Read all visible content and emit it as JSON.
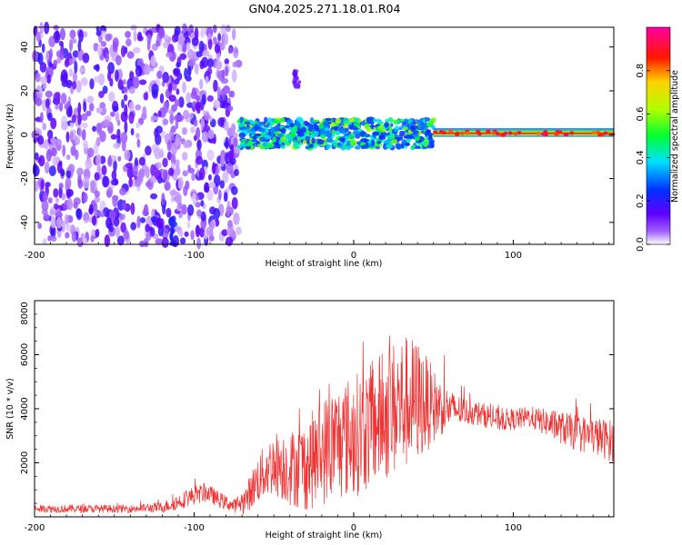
{
  "title": "GN04.2025.271.18.01.R04",
  "chart_data": [
    {
      "type": "heatmap",
      "title": "GN04.2025.271.18.01.R04",
      "xlabel": "Height of straight line (km)",
      "ylabel": "Frequency (Hz)",
      "xlim": [
        -200,
        163
      ],
      "ylim": [
        -50,
        49
      ],
      "xticks": [
        "-200",
        "-100",
        "0",
        "100"
      ],
      "xtick_values": [
        -200,
        -100,
        0,
        100
      ],
      "yticks": [
        "-40",
        "-20",
        "0",
        "20",
        "40"
      ],
      "ytick_values": [
        -40,
        -20,
        0,
        20,
        40
      ],
      "colorbar": {
        "label": "Normalized spectral amplitude",
        "range": [
          0,
          1
        ],
        "ticks": [
          "0.0",
          "0.2",
          "0.4",
          "0.6",
          "0.8"
        ],
        "tick_values": [
          0.0,
          0.2,
          0.4,
          0.6,
          0.8
        ],
        "colormap": [
          "#ffffff",
          "#7b00ff",
          "#0000ff",
          "#00ffff",
          "#00ff00",
          "#ffff00",
          "#ff0000",
          "#ff00ff"
        ]
      },
      "regions": [
        {
          "name": "diffuse noise",
          "x_from": -200,
          "x_to": -72,
          "freq_from": -50,
          "freq_to": 49,
          "amplitude": 0.15
        },
        {
          "name": "faint column",
          "x_from": -115,
          "x_to": -112,
          "freq_from": -50,
          "freq_to": -38,
          "amplitude": 0.25
        },
        {
          "name": "isolated patch",
          "x_from": -38,
          "x_to": -34,
          "freq_from": 22,
          "freq_to": 29,
          "amplitude": 0.12
        },
        {
          "name": "broadband signal",
          "x_from": -72,
          "x_to": 50,
          "freq_from": -6,
          "freq_to": 7,
          "amplitude": 0.35
        },
        {
          "name": "narrow line",
          "x_from": 50,
          "x_to": 163,
          "freq_from": -1,
          "freq_to": 2,
          "amplitude": 0.95
        }
      ]
    },
    {
      "type": "line",
      "xlabel": "Height of straight line (km)",
      "ylabel": "SNR (10 * v/v)",
      "xlim": [
        -200,
        163
      ],
      "ylim": [
        0,
        8000
      ],
      "xticks": [
        "-200",
        "-100",
        "0",
        "100"
      ],
      "xtick_values": [
        -200,
        -100,
        0,
        100
      ],
      "yticks": [
        "2000",
        "4000",
        "6000",
        "8000"
      ],
      "ytick_values": [
        2000,
        4000,
        6000,
        8000
      ],
      "series": [
        {
          "name": "SNR",
          "color": "#ee3333",
          "x": [
            -200,
            -180,
            -160,
            -140,
            -120,
            -110,
            -100,
            -92,
            -85,
            -75,
            -68,
            -60,
            -50,
            -40,
            -30,
            -20,
            -10,
            0,
            10,
            20,
            30,
            40,
            50,
            60,
            70,
            80,
            90,
            100,
            110,
            120,
            130,
            140,
            150,
            163
          ],
          "values": [
            300,
            300,
            300,
            300,
            350,
            550,
            800,
            900,
            650,
            400,
            600,
            1400,
            2000,
            1800,
            1900,
            2400,
            2800,
            3000,
            3300,
            3800,
            4200,
            4300,
            4100,
            4000,
            3900,
            3800,
            3600,
            3600,
            3700,
            3500,
            3300,
            3100,
            3000,
            2800
          ],
          "spread": [
            150,
            150,
            150,
            150,
            200,
            300,
            350,
            350,
            300,
            250,
            500,
            900,
            1200,
            1400,
            1700,
            2000,
            2200,
            2300,
            2300,
            2500,
            2600,
            2300,
            1400,
            700,
            500,
            450,
            450,
            400,
            400,
            500,
            600,
            700,
            700,
            800
          ]
        }
      ]
    }
  ]
}
